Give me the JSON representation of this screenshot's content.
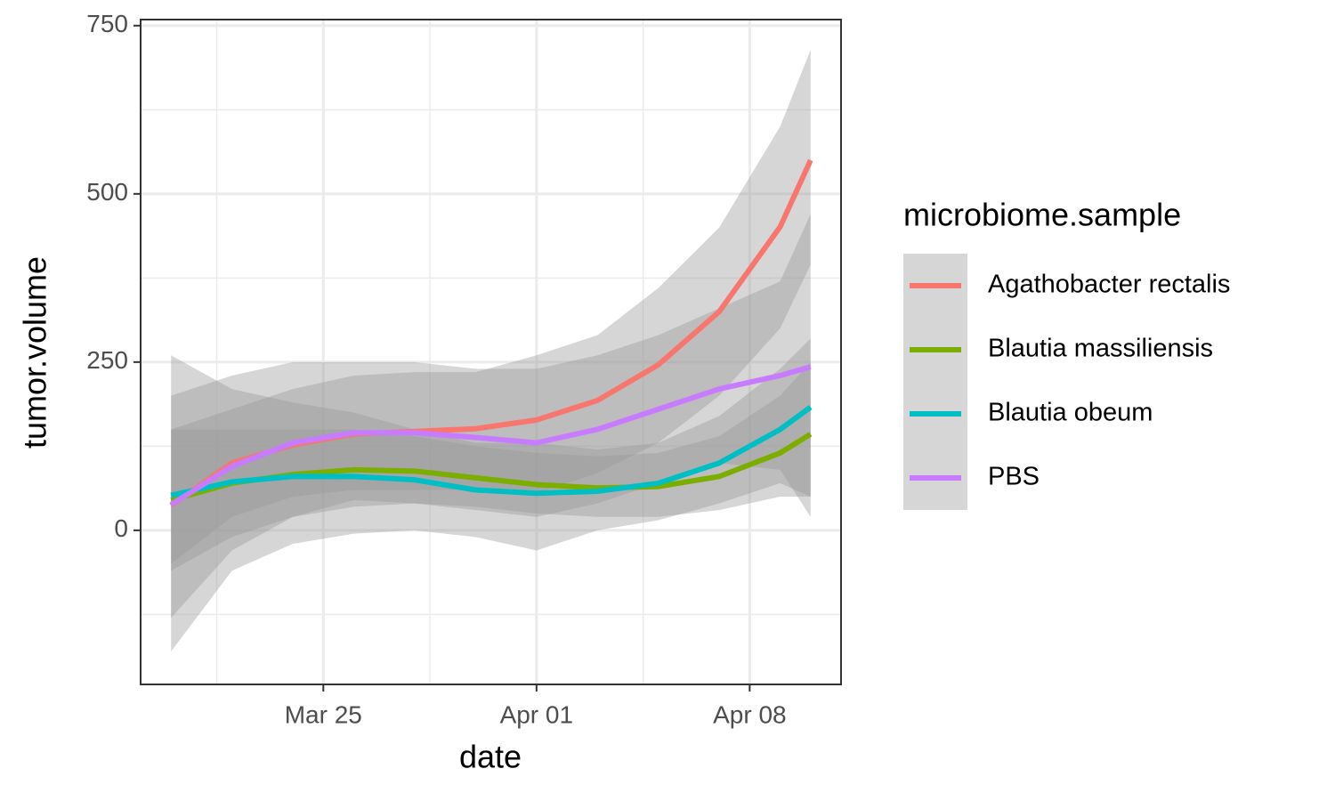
{
  "chart_data": {
    "type": "line",
    "x_label": "date",
    "y_label": "tumor.volume",
    "legend_title": "microbiome.sample",
    "x": [
      "Mar 20",
      "Mar 22",
      "Mar 24",
      "Mar 26",
      "Mar 28",
      "Mar 30",
      "Apr 01",
      "Apr 03",
      "Apr 05",
      "Apr 07",
      "Apr 09",
      "Apr 10"
    ],
    "xlim": [
      "Mar 19",
      "Apr 11"
    ],
    "xticks": [
      "Mar 25",
      "Apr 01",
      "Apr 08"
    ],
    "ylim": [
      -229,
      759
    ],
    "yticks": [
      0,
      250,
      500,
      750
    ],
    "grid": true,
    "legend": "right",
    "band_color": "#999999",
    "series": [
      {
        "name": "Agathobacter rectalis",
        "color": "#F8766D",
        "values": [
          37,
          100,
          127,
          143,
          147,
          151,
          164,
          193,
          246,
          325,
          451,
          550
        ],
        "lower": [
          -50,
          20,
          50,
          60,
          60,
          60,
          55,
          85,
          130,
          200,
          300,
          395
        ],
        "upper": [
          150,
          180,
          210,
          230,
          235,
          235,
          260,
          290,
          360,
          450,
          600,
          714
        ]
      },
      {
        "name": "Blautia massiliensis",
        "color": "#7CAE00",
        "values": [
          45,
          70,
          83,
          90,
          88,
          78,
          68,
          63,
          65,
          80,
          115,
          143
        ],
        "lower": [
          -60,
          -10,
          20,
          35,
          40,
          35,
          25,
          20,
          20,
          30,
          50,
          50
        ],
        "upper": [
          150,
          150,
          150,
          150,
          140,
          125,
          115,
          110,
          115,
          140,
          200,
          250
        ]
      },
      {
        "name": "Blautia obeum",
        "color": "#00BFC4",
        "values": [
          52,
          72,
          80,
          80,
          75,
          60,
          55,
          58,
          70,
          100,
          150,
          183
        ],
        "lower": [
          -180,
          -60,
          -20,
          -5,
          0,
          -10,
          -30,
          0,
          15,
          40,
          70,
          50
        ],
        "upper": [
          260,
          210,
          190,
          175,
          150,
          130,
          130,
          120,
          130,
          170,
          240,
          285
        ]
      },
      {
        "name": "PBS",
        "color": "#C77CFF",
        "values": [
          38,
          95,
          130,
          145,
          145,
          138,
          130,
          150,
          180,
          210,
          230,
          243
        ],
        "lower": [
          -130,
          -30,
          20,
          45,
          40,
          30,
          20,
          40,
          70,
          100,
          90,
          20
        ],
        "upper": [
          200,
          230,
          250,
          250,
          250,
          240,
          240,
          260,
          290,
          330,
          370,
          470
        ]
      }
    ]
  }
}
